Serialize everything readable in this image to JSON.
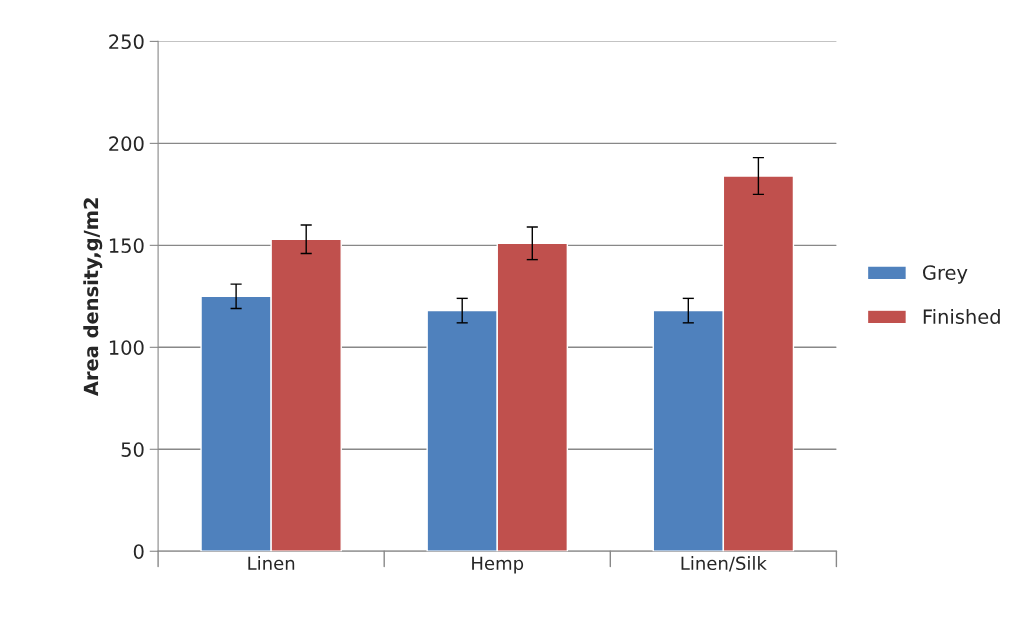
{
  "chart_data": {
    "type": "bar",
    "ylabel": "Area density,g/m2",
    "categories": [
      "Linen",
      "Hemp",
      "Linen/Silk"
    ],
    "series": [
      {
        "name": "Grey",
        "color": "#4f81bd",
        "values": [
          125,
          118,
          118
        ],
        "errors": [
          6,
          6,
          6
        ]
      },
      {
        "name": "Finished",
        "color": "#c0504d",
        "values": [
          153,
          151,
          184
        ],
        "errors": [
          7,
          8,
          9
        ]
      }
    ],
    "ylim": [
      0,
      250
    ],
    "yticks": [
      0,
      50,
      100,
      150,
      200,
      250
    ],
    "grid": "y",
    "legend": "right"
  }
}
